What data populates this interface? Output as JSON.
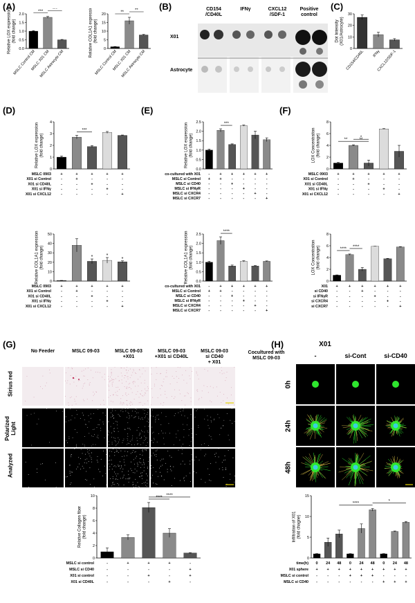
{
  "panels": {
    "A": "(A)",
    "B": "(B)",
    "C": "(C)",
    "D": "(D)",
    "E": "(E)",
    "F": "(F)",
    "G": "(G)",
    "H": "(H)"
  },
  "colors": {
    "black": "#000000",
    "dark": "#555555",
    "mid": "#8a8a8a",
    "light": "#c8c8c8",
    "pale": "#dcdcdc",
    "green": "#2ee62e",
    "cyan": "#3ad0e0"
  },
  "panelB": {
    "columns": [
      "CD154\n/CD40L",
      "IFNγ",
      "CXCL12\n/SDF-1",
      "Positive\ncontrol"
    ],
    "rows": [
      "X01",
      "Astrocyte"
    ]
  },
  "panelG": {
    "columns": [
      "No Feeder",
      "MSLC 09-03",
      "MSLC 09-03\n+X01",
      "MSLC 09-03\n+X01 si CD40L",
      "MSLC 09-03\nsi CD40\n+ X01"
    ],
    "rows": [
      "Sirius red",
      "Polarized\nLight",
      "Analyzed"
    ]
  },
  "panelH": {
    "title": "X01",
    "cocultured_label": "Cocultured with\nMSLC 09-03",
    "columns": [
      "-",
      "si-Cont",
      "si-CD40"
    ],
    "rows": [
      "0h",
      "24h",
      "48h"
    ]
  },
  "chart_data": [
    {
      "id": "A1",
      "type": "bar",
      "ylabel": "Relative LOX expression\n(fold change)",
      "categories": [
        "MSLC Control CM",
        "MSLC X01 CM",
        "MSLC Astrocyte CM"
      ],
      "values": [
        1.0,
        1.8,
        0.5
      ],
      "errors": [
        0.03,
        0.05,
        0.02
      ],
      "ylim": [
        0,
        2.0
      ],
      "yticks": [
        "0.0",
        "0.5",
        "1.0",
        "1.5",
        "2.0"
      ],
      "ytick_values": [
        0,
        0.5,
        1.0,
        1.5,
        2.0
      ],
      "colors": [
        "#000000",
        "#8a8a8a",
        "#555555"
      ],
      "significance": [
        {
          "from": 0,
          "to": 1,
          "label": "***"
        },
        {
          "from": 1,
          "to": 2,
          "label": "***"
        }
      ]
    },
    {
      "id": "A2",
      "type": "bar",
      "ylabel": "Relative COL1A1 expression\n(fold change)",
      "categories": [
        "MSLC Control CM",
        "MSLC X01 CM",
        "MSLC Astrocyte CM"
      ],
      "values": [
        1.0,
        16.0,
        7.8
      ],
      "errors": [
        0.1,
        2.0,
        0.3
      ],
      "ylim": [
        0,
        20
      ],
      "yticks": [
        "0",
        "5",
        "10",
        "15",
        "20"
      ],
      "ytick_values": [
        0,
        5,
        10,
        15,
        20
      ],
      "colors": [
        "#000000",
        "#8a8a8a",
        "#555555"
      ],
      "significance": [
        {
          "from": 0,
          "to": 1,
          "label": "**"
        },
        {
          "from": 1,
          "to": 2,
          "label": "**"
        }
      ]
    },
    {
      "id": "C",
      "type": "bar",
      "ylabel": "Dot Intensity\n(X01/Astrocyte)",
      "categories": [
        "CD154/CD40L",
        "IFNγ",
        "CXCL12/SDF-1"
      ],
      "values": [
        27,
        12,
        7.5
      ],
      "errors": [
        2,
        2,
        1
      ],
      "ylim": [
        0,
        30
      ],
      "yticks": [
        "0",
        "10",
        "20",
        "30"
      ],
      "ytick_values": [
        0,
        10,
        20,
        30
      ],
      "colors": [
        "#333333",
        "#8a8a8a",
        "#555555"
      ],
      "significance": []
    },
    {
      "id": "D1",
      "type": "bar",
      "ylabel": "Relative LOX expression\n(fold change)",
      "values": [
        1.0,
        2.7,
        1.9,
        3.1,
        2.85
      ],
      "errors": [
        0.1,
        0.15,
        0.08,
        0.08,
        0.03
      ],
      "ylim": [
        0,
        4
      ],
      "yticks": [
        "0",
        "1",
        "2",
        "3",
        "4"
      ],
      "ytick_values": [
        0,
        1,
        2,
        3,
        4
      ],
      "colors": [
        "#000000",
        "#8a8a8a",
        "#555555",
        "#dcdcdc",
        "#555555"
      ],
      "significance": [
        {
          "from": 1,
          "to": 2,
          "label": "***"
        }
      ],
      "rowlabels": [
        "MSLC 0903",
        "X01 si Control",
        "X01 si CD40L",
        "X01 si IFNγ",
        "X01 si CXCL12"
      ],
      "signs": [
        [
          "+",
          "+",
          "+",
          "+",
          "+"
        ],
        [
          "-",
          "+",
          "-",
          "-",
          "-"
        ],
        [
          "-",
          "-",
          "+",
          "-",
          "-"
        ],
        [
          "-",
          "-",
          "-",
          "+",
          "-"
        ],
        [
          "-",
          "-",
          "-",
          "-",
          "+"
        ]
      ]
    },
    {
      "id": "D2",
      "type": "bar",
      "ylabel": "Relative COL1A1 expression\n(fold change)",
      "values": [
        0.5,
        38,
        21,
        22,
        20.5
      ],
      "errors": [
        0.2,
        7,
        2.5,
        3,
        1
      ],
      "ylim": [
        0,
        50
      ],
      "yticks": [
        "0",
        "10",
        "20",
        "30",
        "40",
        "50"
      ],
      "ytick_values": [
        0,
        10,
        20,
        30,
        40,
        50
      ],
      "colors": [
        "#000000",
        "#8a8a8a",
        "#555555",
        "#dcdcdc",
        "#555555"
      ],
      "stars": [
        "",
        "",
        "*",
        "*",
        "*"
      ],
      "significance": [],
      "rowlabels": [
        "MSLC 0903",
        "X01 si Control",
        "X01 si CD40L",
        "X01 si IFNγ",
        "X01 si CXCL12"
      ],
      "signs": [
        [
          "+",
          "+",
          "+",
          "+",
          "+"
        ],
        [
          "-",
          "+",
          "-",
          "-",
          "-"
        ],
        [
          "-",
          "-",
          "+",
          "-",
          "-"
        ],
        [
          "-",
          "-",
          "-",
          "+",
          "-"
        ],
        [
          "-",
          "-",
          "-",
          "-",
          "+"
        ]
      ]
    },
    {
      "id": "E1",
      "type": "bar",
      "ylabel": "Relative LOX expression\n(fold change)",
      "values": [
        1.0,
        2.05,
        1.3,
        2.3,
        1.8,
        1.55
      ],
      "errors": [
        0.05,
        0.08,
        0.03,
        0.03,
        0.2,
        0.1
      ],
      "ylim": [
        0,
        2.5
      ],
      "yticks": [
        "0.0",
        "0.5",
        "1.0",
        "1.5",
        "2.0",
        "2.5"
      ],
      "ytick_values": [
        0,
        0.5,
        1.0,
        1.5,
        2.0,
        2.5
      ],
      "colors": [
        "#000000",
        "#8a8a8a",
        "#555555",
        "#dcdcdc",
        "#555555",
        "#8a8a8a"
      ],
      "significance": [
        {
          "from": 1,
          "to": 2,
          "label": "***"
        }
      ],
      "rowlabels": [
        "co-cultured with X01",
        "MSLC si Control",
        "MSLC si CD40",
        "MSLC si IFNγR",
        "MSLC si CXCR4",
        "MSLC si CXCR7"
      ],
      "signs": [
        [
          "-",
          "+",
          "+",
          "+",
          "+",
          "+"
        ],
        [
          "+",
          "+",
          "-",
          "-",
          "-",
          "-"
        ],
        [
          "-",
          "-",
          "+",
          "-",
          "-",
          "-"
        ],
        [
          "-",
          "-",
          "-",
          "+",
          "-",
          "-"
        ],
        [
          "-",
          "-",
          "-",
          "-",
          "+",
          "-"
        ],
        [
          "-",
          "-",
          "-",
          "-",
          "-",
          "+"
        ]
      ]
    },
    {
      "id": "E2",
      "type": "bar",
      "ylabel": "Relative COL1A1 expression\n(fold change)",
      "values": [
        1.0,
        2.15,
        0.8,
        1.05,
        0.8,
        1.05
      ],
      "errors": [
        0.05,
        0.2,
        0.05,
        0.03,
        0.02,
        0.02
      ],
      "ylim": [
        0,
        2.5
      ],
      "yticks": [
        "0.0",
        "0.5",
        "1.0",
        "1.5",
        "2.0",
        "2.5"
      ],
      "ytick_values": [
        0,
        0.5,
        1.0,
        1.5,
        2.0,
        2.5
      ],
      "colors": [
        "#000000",
        "#8a8a8a",
        "#555555",
        "#dcdcdc",
        "#555555",
        "#8a8a8a"
      ],
      "significance": [
        {
          "from": 1,
          "to": 2,
          "label": "****"
        }
      ],
      "rowlabels": [
        "co-cultured with X01",
        "MSLC si Control",
        "MSLC si CD40",
        "MSLC si IFNγR",
        "MSLC si CXCR4",
        "MSLC si CXCR7"
      ],
      "signs": [
        [
          "-",
          "+",
          "+",
          "+",
          "+",
          "+"
        ],
        [
          "+",
          "+",
          "-",
          "-",
          "-",
          "-"
        ],
        [
          "-",
          "-",
          "+",
          "-",
          "-",
          "-"
        ],
        [
          "-",
          "-",
          "-",
          "+",
          "-",
          "-"
        ],
        [
          "-",
          "-",
          "-",
          "-",
          "+",
          "-"
        ],
        [
          "-",
          "-",
          "-",
          "-",
          "-",
          "+"
        ]
      ]
    },
    {
      "id": "F1",
      "type": "bar",
      "ylabel": "LOX Concentration\n(fold change)",
      "values": [
        1.0,
        4.0,
        1.0,
        6.8,
        3.0
      ],
      "errors": [
        0.1,
        0.1,
        0.5,
        0.05,
        1.0
      ],
      "ylim": [
        0,
        8
      ],
      "yticks": [
        "0",
        "2",
        "4",
        "6",
        "8"
      ],
      "ytick_values": [
        0,
        2,
        4,
        6,
        8
      ],
      "colors": [
        "#000000",
        "#8a8a8a",
        "#555555",
        "#dcdcdc",
        "#555555"
      ],
      "significance": [
        {
          "from": 0,
          "to": 1,
          "label": "**"
        },
        {
          "from": 1,
          "to": 2,
          "label": "*"
        },
        {
          "from": 1,
          "to": 2,
          "label": "**",
          "level": 0
        }
      ],
      "rowlabels": [
        "MSLC 0903",
        "X01 si Control",
        "X01 si CD40L",
        "X01 si IFNγ",
        "X01 si CXCL12"
      ],
      "signs": [
        [
          "+",
          "+",
          "+",
          "+",
          "+"
        ],
        [
          "-",
          "+",
          "-",
          "-",
          "-"
        ],
        [
          "-",
          "-",
          "+",
          "-",
          "-"
        ],
        [
          "-",
          "-",
          "-",
          "+",
          "-"
        ],
        [
          "-",
          "-",
          "-",
          "-",
          "+"
        ]
      ]
    },
    {
      "id": "F2",
      "type": "bar",
      "ylabel": "LOX Concentration\n(fold change)",
      "values": [
        1.0,
        4.5,
        2.0,
        5.9,
        3.8,
        5.8
      ],
      "errors": [
        0.05,
        0.1,
        0.3,
        0.02,
        0.05,
        0.05
      ],
      "ylim": [
        0,
        8
      ],
      "yticks": [
        "0",
        "2",
        "4",
        "6",
        "8"
      ],
      "ytick_values": [
        0,
        2,
        4,
        6,
        8
      ],
      "colors": [
        "#000000",
        "#8a8a8a",
        "#555555",
        "#dcdcdc",
        "#555555",
        "#8a8a8a"
      ],
      "significance": [
        {
          "from": 0,
          "to": 1,
          "label": "****"
        },
        {
          "from": 1,
          "to": 2,
          "label": "****"
        }
      ],
      "rowlabels": [
        "X01",
        "si CD40",
        "si IFNγR",
        "si CXCR4",
        "si CXCR7"
      ],
      "signs": [
        [
          "+",
          "+",
          "+",
          "+",
          "+",
          "+"
        ],
        [
          "-",
          "-",
          "+",
          "-",
          "-",
          "-"
        ],
        [
          "-",
          "-",
          "-",
          "+",
          "-",
          "-"
        ],
        [
          "-",
          "-",
          "-",
          "-",
          "+",
          "-"
        ],
        [
          "-",
          "-",
          "-",
          "-",
          "-",
          "+"
        ]
      ]
    },
    {
      "id": "G",
      "type": "bar",
      "ylabel": "Relative Collagen fiber\n(fold change)",
      "values": [
        1.0,
        3.3,
        8.1,
        4.0,
        0.8
      ],
      "errors": [
        0.6,
        0.4,
        0.8,
        0.7,
        0.05
      ],
      "ylim": [
        0,
        10
      ],
      "yticks": [
        "0",
        "2",
        "4",
        "6",
        "8",
        "10"
      ],
      "ytick_values": [
        0,
        2,
        4,
        6,
        8,
        10
      ],
      "colors": [
        "#000000",
        "#8a8a8a",
        "#555555",
        "#8a8a8a",
        "#555555"
      ],
      "significance": [
        {
          "from": 2,
          "to": 3,
          "label": "****"
        },
        {
          "from": 2,
          "to": 4,
          "label": "****"
        }
      ],
      "rowlabels": [
        "MSLC si control",
        "MSLC si CD40",
        "X01 si control",
        "X01 si CD40L"
      ],
      "signs": [
        [
          "-",
          "+",
          "+",
          "+",
          "-"
        ],
        [
          "-",
          "-",
          "-",
          "-",
          "+"
        ],
        [
          "-",
          "-",
          "+",
          "-",
          "+"
        ],
        [
          "-",
          "-",
          "-",
          "+",
          "-"
        ]
      ]
    },
    {
      "id": "H",
      "type": "bar",
      "ylabel": "Infiltration of X01\n(fold chagne)",
      "values": [
        1.0,
        3.8,
        5.8,
        1.0,
        7.1,
        11.6,
        1.0,
        6.4,
        8.6
      ],
      "errors": [
        0.05,
        1.0,
        0.9,
        0.05,
        1.1,
        0.3,
        0.05,
        0.1,
        0.2
      ],
      "ylim": [
        0,
        15
      ],
      "yticks": [
        "0",
        "5",
        "10",
        "15"
      ],
      "ytick_values": [
        0,
        5,
        10,
        15
      ],
      "colors": [
        "#000000",
        "#555555",
        "#555555",
        "#000000",
        "#8a8a8a",
        "#8a8a8a",
        "#000000",
        "#8a8a8a",
        "#8a8a8a"
      ],
      "significance": [
        {
          "from": 2,
          "to": 5,
          "label": "****"
        },
        {
          "from": 5,
          "to": 8,
          "label": "*"
        }
      ],
      "rowlabels": [
        "time(h)",
        "X01 sphere",
        "MSLC si control",
        "MSLC si CD40"
      ],
      "signs": [
        [
          "0",
          "24",
          "48",
          "0",
          "24",
          "48",
          "0",
          "24",
          "48"
        ],
        [
          "+",
          "+",
          "+",
          "+",
          "+",
          "+",
          "+",
          "+",
          "+"
        ],
        [
          "-",
          "-",
          "-",
          "+",
          "+",
          "+",
          "-",
          "-",
          "-"
        ],
        [
          "-",
          "-",
          "-",
          "-",
          "-",
          "-",
          "+",
          "+",
          "+"
        ]
      ]
    }
  ]
}
